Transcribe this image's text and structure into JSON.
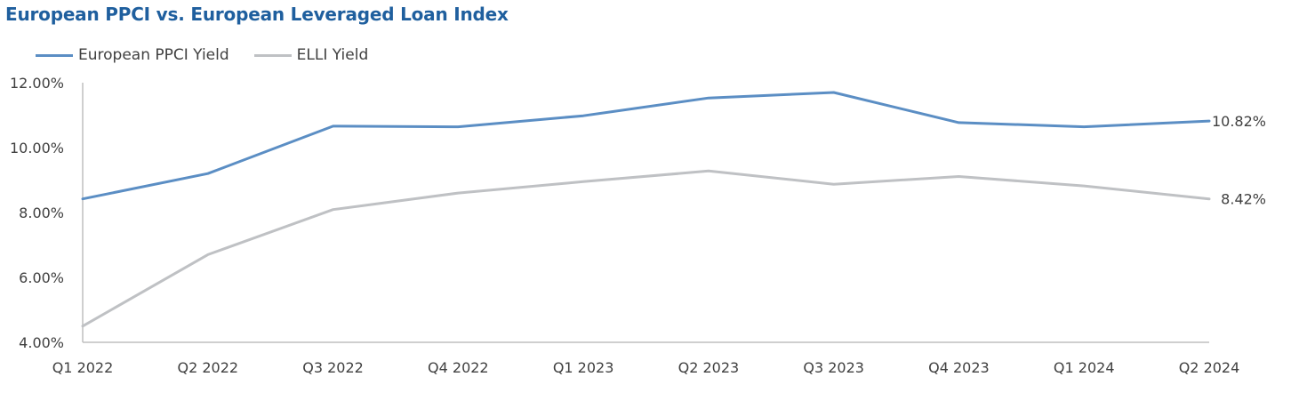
{
  "chart_data": {
    "type": "line",
    "title": "European PPCI vs. European Leveraged Loan Index",
    "categories": [
      "Q1 2022",
      "Q2 2022",
      "Q3 2022",
      "Q4 2022",
      "Q1 2023",
      "Q2 2023",
      "Q3 2023",
      "Q4 2023",
      "Q1 2024",
      "Q2 2024"
    ],
    "series": [
      {
        "name": "European PPCI Yield",
        "color": "#5b8ec4",
        "values": [
          8.42,
          9.2,
          10.66,
          10.64,
          10.98,
          11.53,
          11.7,
          10.77,
          10.64,
          10.82
        ],
        "end_label": "10.82%"
      },
      {
        "name": "ELLI Yield",
        "color": "#bfc1c4",
        "values": [
          4.5,
          6.7,
          8.09,
          8.6,
          8.95,
          9.28,
          8.87,
          9.11,
          8.82,
          8.42
        ],
        "end_label": "8.42%"
      }
    ],
    "yticks": [
      "4.00%",
      "6.00%",
      "8.00%",
      "10.00%",
      "12.00%"
    ],
    "ylim": [
      4,
      12
    ],
    "grid": false,
    "legend": "top-left"
  }
}
